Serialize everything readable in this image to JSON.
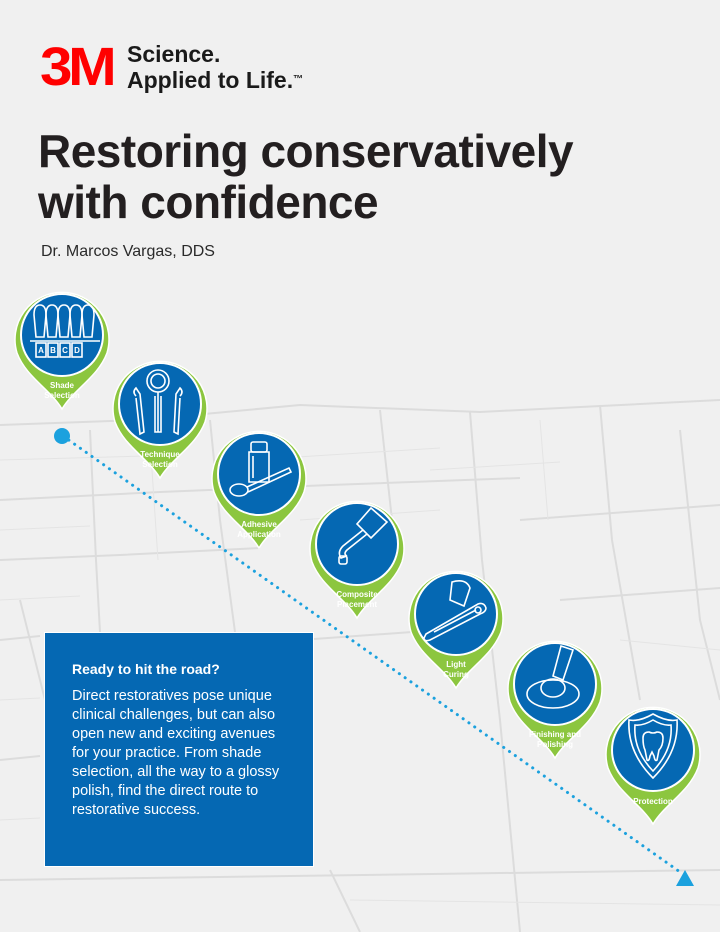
{
  "brand": {
    "logo_text": "3M",
    "tagline_line1": "Science.",
    "tagline_line2": "Applied to Life.",
    "trademark": "™",
    "color": "#ff0000"
  },
  "title_line1": "Restoring conservatively",
  "title_line2": "with confidence",
  "author": "Dr. Marcos Vargas, DDS",
  "colors": {
    "pin": "#8cc63f",
    "circle": "#0568b3",
    "route": "#1ba1de",
    "box": "#0568b3"
  },
  "steps": [
    {
      "label_line1": "Shade",
      "label_line2": "Selection",
      "icon": "shade-guide-icon",
      "shade_letters": [
        "A",
        "B",
        "C",
        "D"
      ]
    },
    {
      "label_line1": "Technique",
      "label_line2": "Selection",
      "icon": "dental-instruments-icon"
    },
    {
      "label_line1": "Adhesive",
      "label_line2": "Application",
      "icon": "adhesive-bottle-icon"
    },
    {
      "label_line1": "Composite",
      "label_line2": "Placement",
      "icon": "composite-syringe-icon"
    },
    {
      "label_line1": "Light",
      "label_line2": "Curing",
      "icon": "curing-light-icon"
    },
    {
      "label_line1": "Finishing and",
      "label_line2": "Polishing",
      "icon": "polishing-disc-icon"
    },
    {
      "label_line1": "Protection",
      "label_line2": "",
      "icon": "tooth-shield-icon"
    }
  ],
  "info_box": {
    "title": "Ready to hit the road?",
    "body": "Direct restoratives pose unique clinical challenges, but can also open new and exciting avenues for your practice. From shade selection, all the way to a glossy polish, find the direct route to restorative success."
  }
}
